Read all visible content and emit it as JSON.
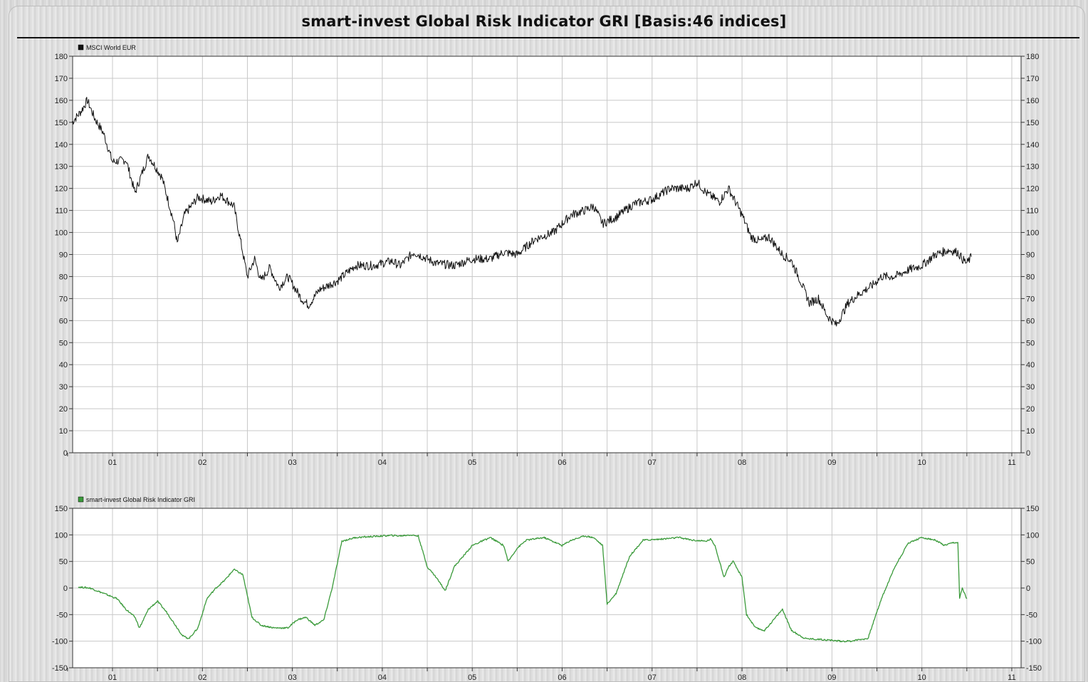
{
  "title": "smart-invest Global Risk Indicator GRI [Basis:46 indices]",
  "chart_data": [
    {
      "type": "line",
      "legend": "MSCI World EUR",
      "color": "#111111",
      "ylim": [
        0,
        180
      ],
      "yticks": [
        0,
        10,
        20,
        30,
        40,
        50,
        60,
        70,
        80,
        90,
        100,
        110,
        120,
        130,
        140,
        150,
        160,
        170,
        180
      ],
      "xticks": [
        "01",
        "02",
        "03",
        "04",
        "05",
        "06",
        "07",
        "08",
        "09",
        "10",
        "11"
      ],
      "grid": true,
      "series": [
        {
          "x": [
            2000.55,
            2000.65,
            2000.72,
            2000.8,
            2000.9,
            2001.0,
            2001.15,
            2001.25,
            2001.4,
            2001.55,
            2001.68,
            2001.72,
            2001.8,
            2001.95,
            2002.1,
            2002.2,
            2002.35,
            2002.5,
            2002.58,
            2002.65,
            2002.75,
            2002.85,
            2002.95,
            2003.1,
            2003.18,
            2003.3,
            2003.5,
            2003.7,
            2003.9,
            2004.1,
            2004.2,
            2004.35,
            2004.5,
            2004.6,
            2004.8,
            2005.0,
            2005.2,
            2005.35,
            2005.5,
            2005.7,
            2005.9,
            2006.1,
            2006.25,
            2006.35,
            2006.45,
            2006.6,
            2006.8,
            2007.0,
            2007.2,
            2007.4,
            2007.5,
            2007.6,
            2007.75,
            2007.85,
            2008.0,
            2008.1,
            2008.2,
            2008.3,
            2008.45,
            2008.55,
            2008.65,
            2008.75,
            2008.85,
            2008.95,
            2009.05,
            2009.18,
            2009.3,
            2009.45,
            2009.55,
            2009.7,
            2009.85,
            2010.0,
            2010.15,
            2010.3,
            2010.4,
            2010.45,
            2010.5,
            2010.55
          ],
          "y": [
            150,
            155,
            160,
            152,
            145,
            132,
            133,
            118,
            135,
            125,
            105,
            95,
            108,
            116,
            114,
            117,
            112,
            80,
            88,
            78,
            84,
            75,
            80,
            70,
            67,
            74,
            78,
            85,
            85,
            87,
            85,
            91,
            88,
            86,
            85,
            88,
            88,
            91,
            90,
            97,
            100,
            108,
            110,
            112,
            104,
            107,
            113,
            115,
            120,
            120,
            123,
            118,
            114,
            120,
            108,
            98,
            96,
            98,
            90,
            87,
            78,
            68,
            70,
            62,
            58,
            68,
            72,
            76,
            80,
            80,
            83,
            85,
            90,
            92,
            91,
            88,
            86,
            89
          ]
        }
      ]
    },
    {
      "type": "line",
      "legend": "smart-invest Global Risk Indicator GRI",
      "color": "#3a9a3a",
      "ylim": [
        -150,
        150
      ],
      "yticks": [
        -150,
        -100,
        -50,
        0,
        50,
        100,
        150
      ],
      "xticks": [
        "01",
        "02",
        "03",
        "04",
        "05",
        "06",
        "07",
        "08",
        "09",
        "10",
        "11"
      ],
      "grid": true,
      "series": [
        {
          "x": [
            2000.62,
            2000.75,
            2000.9,
            2001.05,
            2001.15,
            2001.25,
            2001.3,
            2001.4,
            2001.5,
            2001.6,
            2001.7,
            2001.78,
            2001.85,
            2001.95,
            2002.05,
            2002.15,
            2002.25,
            2002.35,
            2002.45,
            2002.55,
            2002.65,
            2002.8,
            2002.95,
            2003.05,
            2003.15,
            2003.25,
            2003.35,
            2003.45,
            2003.55,
            2003.7,
            2003.9,
            2004.1,
            2004.2,
            2004.3,
            2004.4,
            2004.5,
            2004.6,
            2004.7,
            2004.8,
            2004.9,
            2005.0,
            2005.2,
            2005.35,
            2005.4,
            2005.5,
            2005.6,
            2005.8,
            2006.0,
            2006.1,
            2006.25,
            2006.35,
            2006.45,
            2006.5,
            2006.6,
            2006.75,
            2006.9,
            2007.1,
            2007.3,
            2007.45,
            2007.6,
            2007.65,
            2007.7,
            2007.8,
            2007.85,
            2007.9,
            2008.0,
            2008.05,
            2008.15,
            2008.25,
            2008.35,
            2008.45,
            2008.55,
            2008.7,
            2008.9,
            2009.1,
            2009.2,
            2009.3,
            2009.4,
            2009.55,
            2009.7,
            2009.85,
            2010.0,
            2010.15,
            2010.25,
            2010.35,
            2010.4,
            2010.42,
            2010.45,
            2010.5
          ],
          "y": [
            2,
            0,
            -10,
            -20,
            -40,
            -55,
            -75,
            -40,
            -25,
            -45,
            -70,
            -90,
            -95,
            -75,
            -20,
            0,
            15,
            35,
            25,
            -55,
            -70,
            -75,
            -75,
            -60,
            -55,
            -70,
            -60,
            5,
            88,
            95,
            97,
            99,
            98,
            100,
            98,
            40,
            20,
            -5,
            40,
            60,
            80,
            95,
            80,
            50,
            75,
            90,
            95,
            80,
            90,
            98,
            95,
            80,
            -30,
            -10,
            60,
            90,
            92,
            95,
            90,
            88,
            92,
            80,
            20,
            40,
            50,
            20,
            -50,
            -75,
            -80,
            -60,
            -40,
            -80,
            -95,
            -97,
            -100,
            -100,
            -97,
            -95,
            -20,
            40,
            85,
            95,
            90,
            80,
            85,
            85,
            -20,
            0,
            -20
          ]
        }
      ]
    }
  ]
}
